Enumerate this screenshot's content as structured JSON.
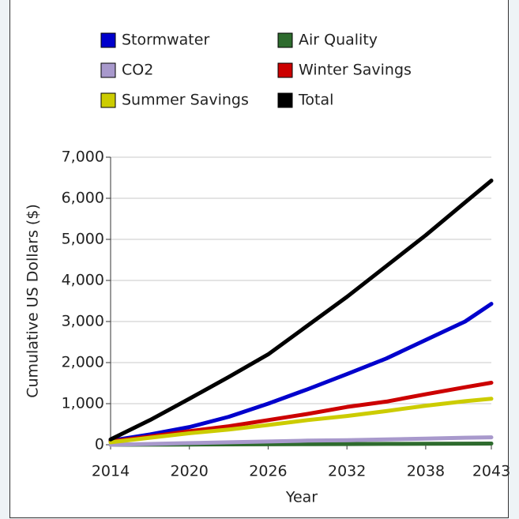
{
  "chart_data": {
    "type": "line",
    "x_label": "Year",
    "y_label": "Cumulative US Dollars ($)",
    "x": [
      2014,
      2017,
      2020,
      2023,
      2026,
      2029,
      2032,
      2035,
      2038,
      2041,
      2043
    ],
    "series": [
      {
        "name": "Stormwater",
        "color": "#0000cc",
        "values": [
          100,
          250,
          430,
          680,
          1000,
          1350,
          1720,
          2100,
          2550,
          3000,
          3430
        ]
      },
      {
        "name": "Air Quality",
        "color": "#2e6b2e",
        "values": [
          0,
          3,
          6,
          9,
          12,
          15,
          18,
          21,
          24,
          27,
          30
        ]
      },
      {
        "name": "CO2",
        "color": "#a899cc",
        "values": [
          0,
          20,
          40,
          60,
          80,
          100,
          110,
          130,
          150,
          170,
          180
        ]
      },
      {
        "name": "Winter Savings",
        "color": "#cc0000",
        "values": [
          80,
          200,
          330,
          450,
          600,
          750,
          920,
          1050,
          1230,
          1400,
          1510
        ]
      },
      {
        "name": "Summer Savings",
        "color": "#cccc00",
        "values": [
          60,
          170,
          280,
          370,
          480,
          600,
          700,
          820,
          950,
          1060,
          1120
        ]
      },
      {
        "name": "Total",
        "color": "#000000",
        "values": [
          130,
          600,
          1120,
          1650,
          2200,
          2900,
          3600,
          4350,
          5100,
          5900,
          6430
        ]
      }
    ],
    "xlim": [
      2014,
      2043
    ],
    "xticks": [
      2014,
      2020,
      2026,
      2032,
      2038,
      2043
    ],
    "ylim": [
      0,
      7000
    ],
    "yticks": [
      0,
      {
        "value": 1000,
        "label": "1,000"
      },
      {
        "value": 2000,
        "label": "2,000"
      },
      {
        "value": 3000,
        "label": "3,000"
      },
      {
        "value": 4000,
        "label": "4,000"
      },
      {
        "value": 5000,
        "label": "5,000"
      },
      {
        "value": 6000,
        "label": "6,000"
      },
      {
        "value": 7000,
        "label": "7,000"
      }
    ],
    "grid": true
  }
}
